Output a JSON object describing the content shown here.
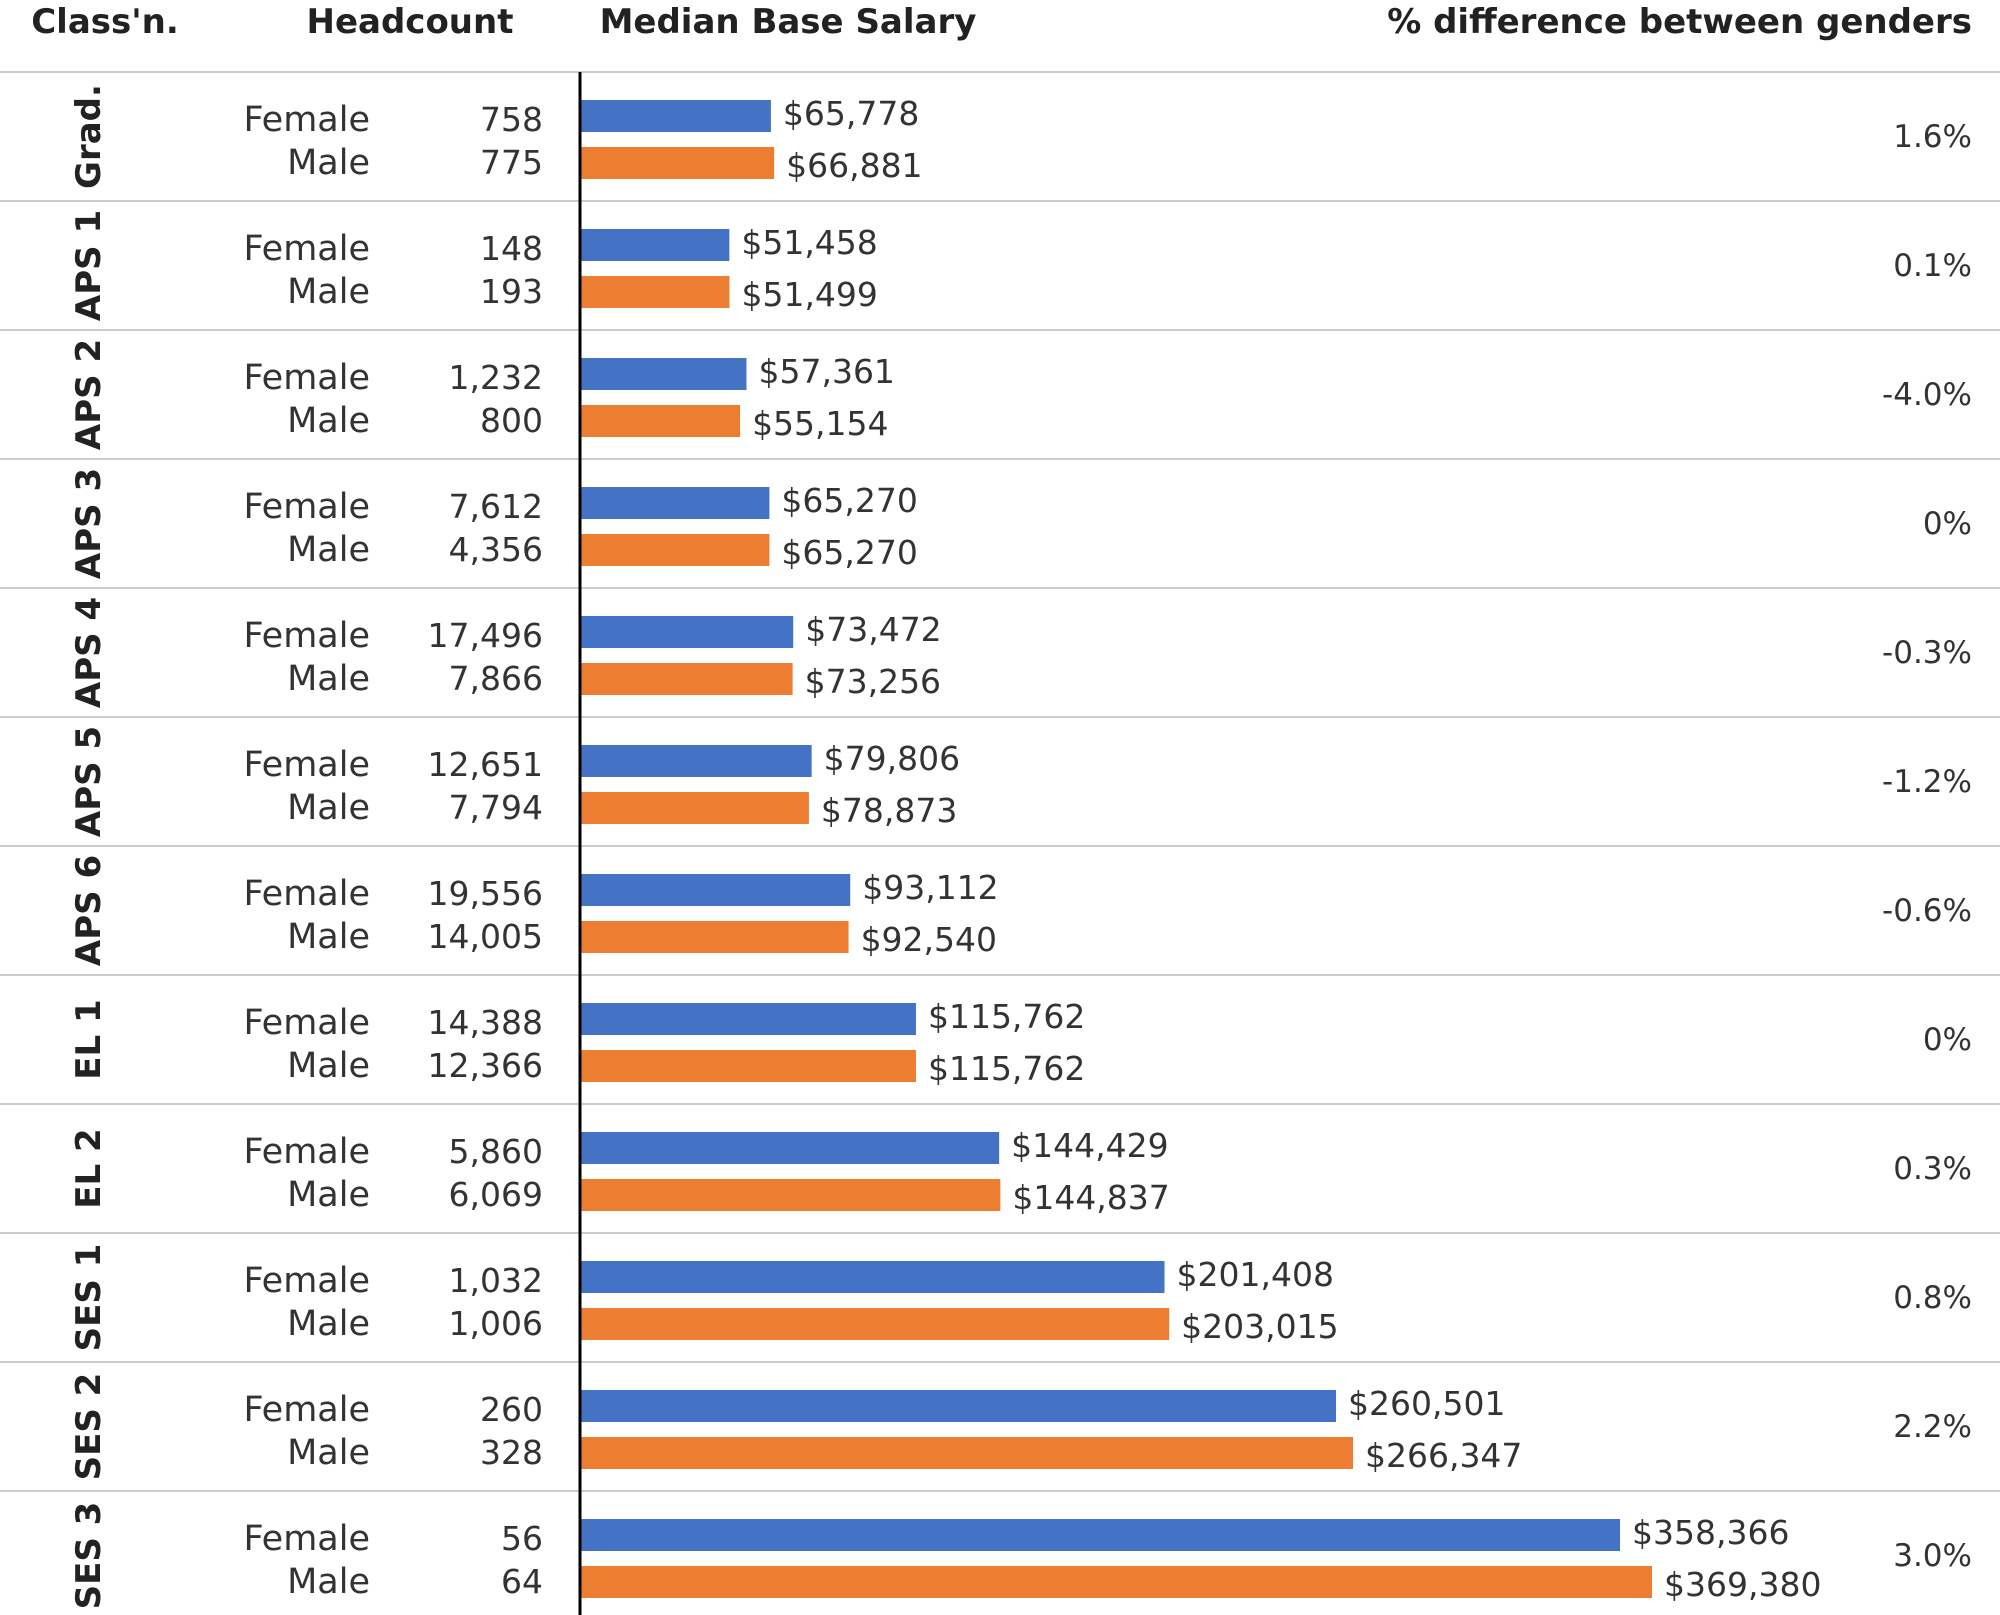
{
  "headers": {
    "classification": "Class'n.",
    "headcount": "Headcount",
    "salary": "Median Base Salary",
    "difference": "% difference between genders"
  },
  "colors": {
    "female": "#4472C4",
    "male": "#ED7D31",
    "divider": "#cccccc",
    "axis": "#000000"
  },
  "chart_data": {
    "type": "bar",
    "orientation": "horizontal",
    "categories": [
      "Grad.",
      "APS 1",
      "APS 2",
      "APS 3",
      "APS 4",
      "APS 5",
      "APS 6",
      "EL 1",
      "EL 2",
      "SES 1",
      "SES 2",
      "SES 3"
    ],
    "series": [
      {
        "name": "Female",
        "color": "#4472C4",
        "headcount": [
          "758",
          "148",
          "1,232",
          "7,612",
          "17,496",
          "12,651",
          "19,556",
          "14,388",
          "5,860",
          "1,032",
          "260",
          "56"
        ],
        "values": [
          65778,
          51458,
          57361,
          65270,
          73472,
          79806,
          93112,
          115762,
          144429,
          201408,
          260501,
          358366
        ],
        "labels": [
          "$65,778",
          "$51,458",
          "$57,361",
          "$65,270",
          "$73,472",
          "$79,806",
          "$93,112",
          "$115,762",
          "$144,429",
          "$201,408",
          "$260,501",
          "$358,366"
        ]
      },
      {
        "name": "Male",
        "color": "#ED7D31",
        "headcount": [
          "775",
          "193",
          "800",
          "4,356",
          "7,866",
          "7,794",
          "14,005",
          "12,366",
          "6,069",
          "1,006",
          "328",
          "64"
        ],
        "values": [
          66881,
          51499,
          55154,
          65270,
          73256,
          78873,
          92540,
          115762,
          144837,
          203015,
          266347,
          369380
        ],
        "labels": [
          "$66,881",
          "$51,499",
          "$55,154",
          "$65,270",
          "$73,256",
          "$78,873",
          "$92,540",
          "$115,762",
          "$144,837",
          "$203,015",
          "$266,347",
          "$369,380"
        ]
      }
    ],
    "differences": [
      "1.6%",
      "0.1%",
      "-4.0%",
      "0%",
      "-0.3%",
      "-1.2%",
      "-0.6%",
      "0%",
      "0.3%",
      "0.8%",
      "2.2%",
      "3.0%"
    ],
    "xlim": [
      0,
      369380
    ]
  }
}
